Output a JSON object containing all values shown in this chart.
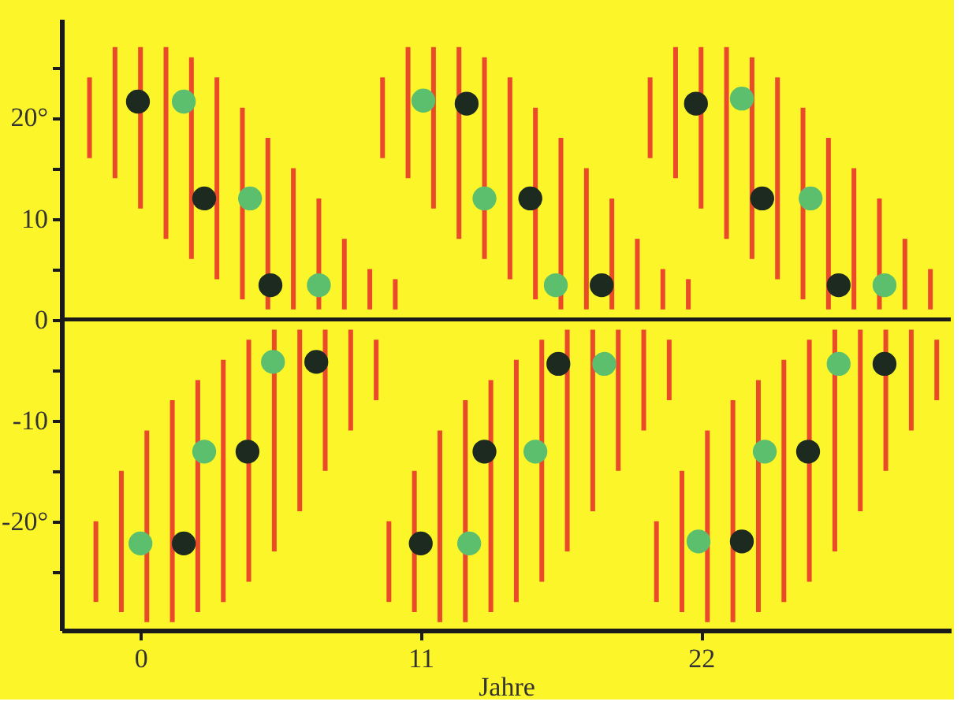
{
  "chart_data": {
    "type": "scatter",
    "xlabel": "Jahre",
    "xlim": [
      -3.1,
      31.8
    ],
    "ylim": [
      -30.8,
      29.8
    ],
    "xticks": [
      0,
      11,
      22
    ],
    "yticks": [
      {
        "value": 25,
        "label": null
      },
      {
        "value": 20,
        "label": "20°"
      },
      {
        "value": 15,
        "label": null
      },
      10,
      {
        "value": 5,
        "label": null
      },
      0,
      {
        "value": -5,
        "label": null
      },
      -10,
      {
        "value": -15,
        "label": null
      },
      {
        "value": -20,
        "label": "-20°"
      },
      {
        "value": -25,
        "label": null
      }
    ],
    "grid": false,
    "marker": "circle",
    "ref_lines": [
      {
        "axis": "y",
        "value": 0,
        "color": "#1a1a1a"
      }
    ],
    "series": [
      {
        "type": "bar",
        "color": "#ea4a2a",
        "x": [
          -2,
          -1.75,
          -1,
          -0.75,
          0,
          0.25,
          1,
          1.25,
          2,
          2.25,
          3,
          3.25,
          4,
          4.25,
          5,
          5.25,
          6,
          6.25,
          7,
          7.25,
          8,
          8.25,
          9,
          9.25,
          9.5,
          9.75,
          10,
          10.5,
          10.75,
          11.5,
          11.75,
          12.5,
          12.75,
          13.5,
          13.75,
          14.5,
          14.75,
          15.5,
          15.75,
          16.5,
          16.75,
          17.5,
          17.75,
          18.5,
          18.75,
          19.5,
          19.75,
          20,
          20.25,
          20.5,
          20.75,
          21,
          21.25,
          21.5,
          22,
          22.25,
          23,
          23.25,
          24,
          24.25,
          25,
          25.25,
          26,
          26.25,
          27,
          27.25,
          28,
          28.25,
          29,
          29.25,
          30,
          30.25,
          31,
          31.25
        ],
        "base": [
          16,
          -28,
          14,
          -29,
          11,
          -30,
          8,
          -30,
          6,
          -29,
          4,
          -28,
          2,
          -26,
          1,
          -23,
          1,
          -19,
          1,
          -15,
          1,
          -11,
          1,
          -8,
          16,
          -28,
          1,
          14,
          -29,
          11,
          -30,
          8,
          -30,
          6,
          -29,
          4,
          -28,
          2,
          -26,
          1,
          -23,
          1,
          -19,
          1,
          -15,
          1,
          -11,
          16,
          -28,
          1,
          -8,
          14,
          -29,
          1,
          11,
          -30,
          8,
          -30,
          6,
          -29,
          4,
          -28,
          2,
          -26,
          1,
          -23,
          1,
          -19,
          1,
          -15,
          1,
          -11,
          1,
          -8
        ],
        "values": [
          8,
          8,
          13,
          14,
          16,
          19,
          19,
          22,
          20,
          23,
          20,
          24,
          19,
          24,
          17,
          22,
          14,
          18,
          11,
          14,
          7,
          10,
          4,
          6,
          8,
          8,
          3,
          13,
          14,
          16,
          19,
          19,
          22,
          20,
          23,
          20,
          24,
          19,
          24,
          17,
          22,
          14,
          18,
          11,
          14,
          7,
          10,
          8,
          8,
          4,
          6,
          13,
          14,
          3,
          16,
          19,
          19,
          22,
          20,
          23,
          20,
          24,
          19,
          24,
          17,
          22,
          14,
          18,
          11,
          14,
          7,
          10,
          4,
          6
        ]
      },
      {
        "color": "#1c2a20",
        "x": [
          -0.1,
          2.5,
          5.1,
          12.8,
          15.3,
          18.1,
          21.8,
          24.4,
          27.4,
          6.9,
          4.2,
          1.7,
          16.4,
          13.5,
          11.0,
          29.2,
          26.2,
          23.6
        ],
        "values": [
          21.6,
          12,
          3.4,
          21.4,
          12,
          3.4,
          21.4,
          12,
          3.4,
          -4.2,
          -13.1,
          -22.2,
          -4.4,
          -13.1,
          -22.2,
          -4.4,
          -13.1,
          -22
        ]
      },
      {
        "color": "#5cbf6e",
        "x": [
          1.7,
          4.3,
          7.0,
          11.1,
          13.5,
          16.3,
          23.6,
          26.3,
          29.2,
          5.2,
          2.5,
          0,
          18.2,
          15.5,
          12.9,
          27.4,
          24.5,
          21.9
        ],
        "values": [
          21.6,
          12,
          3.4,
          21.7,
          12,
          3.4,
          21.9,
          12,
          3.4,
          -4.2,
          -13.1,
          -22.2,
          -4.4,
          -13.1,
          -22.2,
          -4.4,
          -13.1,
          -22
        ]
      }
    ]
  }
}
